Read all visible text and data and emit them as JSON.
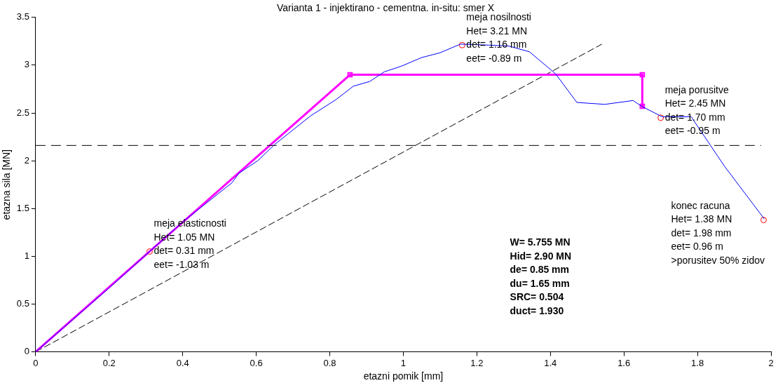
{
  "chart_data": {
    "type": "line",
    "title": "Varianta 1 - injektirano - cementna. in-situ: smer X",
    "xlabel": "etazni pomik [mm]",
    "ylabel": "etazna sila [MN]",
    "xlim": [
      0,
      2
    ],
    "xticks": [
      0,
      0.2,
      0.4,
      0.6,
      0.8,
      1,
      1.2,
      1.4,
      1.6,
      1.8,
      2
    ],
    "ylim": [
      0,
      3.5
    ],
    "yticks": [
      0,
      0.5,
      1,
      1.5,
      2,
      2.5,
      3,
      3.5
    ],
    "grid": false,
    "legend": false,
    "series": [
      {
        "type": "line",
        "color": "#0000ff",
        "marker": "none",
        "line_style": "solid",
        "x": [
          0,
          0.2,
          0.31,
          0.4,
          0.482,
          0.534,
          0.553,
          0.604,
          0.65,
          0.748,
          0.817,
          0.864,
          0.909,
          0.948,
          0.995,
          1.05,
          1.1,
          1.155,
          1.233,
          1.287,
          1.343,
          1.414,
          1.472,
          1.548,
          1.625,
          1.648,
          1.704,
          1.783,
          1.874,
          1.982
        ],
        "values": [
          0,
          0.67,
          1.05,
          1.36,
          1.61,
          1.77,
          1.87,
          2.0,
          2.17,
          2.47,
          2.64,
          2.78,
          2.83,
          2.93,
          2.99,
          3.08,
          3.13,
          3.22,
          3.21,
          3.2,
          3.14,
          2.91,
          2.61,
          2.59,
          2.63,
          2.57,
          2.46,
          2.46,
          1.94,
          1.39
        ]
      },
      {
        "type": "line",
        "color": "#ff00ff",
        "marker": "none",
        "line_style": "solid",
        "x": [
          0,
          0.855,
          1.65,
          1.65
        ],
        "values": [
          0,
          2.9,
          2.9,
          2.57
        ]
      },
      {
        "type": "scatter",
        "color": "#ff00ff",
        "marker": "square",
        "x": [
          0.855,
          1.65,
          1.65
        ],
        "values": [
          2.9,
          2.9,
          2.57
        ]
      },
      {
        "type": "scatter",
        "color": "#ff0000",
        "marker": "circle",
        "x": [
          0.31,
          1.16,
          1.7,
          1.98
        ],
        "values": [
          1.05,
          3.21,
          2.45,
          1.38
        ]
      },
      {
        "type": "line",
        "color": "#000000",
        "marker": "none",
        "line_style": "dashed",
        "x": [
          0,
          1.54
        ],
        "values": [
          0,
          3.22
        ]
      }
    ],
    "ref_lines": [
      {
        "axis": "y",
        "value": 2.16,
        "color": "#000000",
        "line_style": "dashed"
      }
    ],
    "annotations": [
      {
        "text": "meja elasticnosti\nHet= 1.05 MN\ndet= 0.31 mm\neet= -1.03 m",
        "x": 0.31,
        "y": 1.05
      },
      {
        "text": "meja nosilnosti\nHet= 3.21 MN\ndet= 1.16 mm\neet= -0.89 m",
        "x": 1.16,
        "y": 3.21
      },
      {
        "text": "meja porusitve\nHet= 2.45 MN\ndet= 1.70 mm\neet= -0.95 m",
        "x": 1.7,
        "y": 2.45
      },
      {
        "text": "konec racuna\nHet= 1.38 MN\ndet= 1.98 mm\neet= 0.96 m\n>porusitev 50% zidov",
        "x": 1.98,
        "y": 1.38
      },
      "W= 5.755 MN\nHid= 2.90 MN\nde= 0.85 mm\ndu= 1.65 mm\nSRC= 0.504\nduct= 1.930"
    ]
  }
}
